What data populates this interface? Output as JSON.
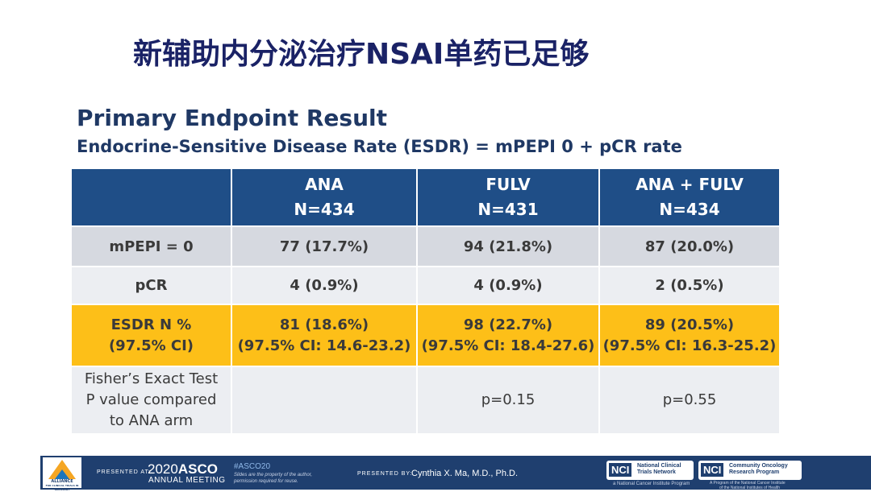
{
  "title": "新辅助内分泌治疗NSAI单药已足够",
  "section": {
    "heading": "Primary Endpoint Result",
    "subheading": "Endocrine-Sensitive Disease Rate (ESDR) = mPEPI 0 + pCR rate"
  },
  "table": {
    "columns": [
      {
        "name": "ANA",
        "n": "N=434"
      },
      {
        "name": "FULV",
        "n": "N=431"
      },
      {
        "name": "ANA + FULV",
        "n": "N=434"
      }
    ],
    "rows": [
      {
        "label": "mPEPI = 0",
        "values": [
          "77 (17.7%)",
          "94 (21.8%)",
          "87 (20.0%)"
        ]
      },
      {
        "label": "pCR",
        "values": [
          "4 (0.9%)",
          "4 (0.9%)",
          "2 (0.5%)"
        ]
      },
      {
        "label": "ESDR N %",
        "label2": "(97.5% CI)",
        "values": [
          "81 (18.6%)",
          "98 (22.7%)",
          "89 (20.5%)"
        ],
        "ci": [
          "(97.5% CI: 14.6-23.2)",
          "(97.5% CI: 18.4-27.6)",
          "(97.5% CI: 16.3-25.2)"
        ]
      },
      {
        "label_lines": [
          "Fisher’s Exact Test",
          "P value compared",
          "to ANA arm"
        ],
        "values": [
          "",
          "p=0.15",
          "p=0.55"
        ]
      }
    ]
  },
  "footer": {
    "presented_at": "PRESENTED AT:",
    "meeting_year": "2020",
    "meeting_name": "ASCO",
    "meeting_sub": "ANNUAL MEETING",
    "hashtag": "#ASCO20",
    "notice_1": "Slides are the property of the author,",
    "notice_2": "permission required for reuse.",
    "presented_by": "PRESENTED BY:",
    "presenter": "Cynthia X. Ma, M.D., Ph.D.",
    "logo_alliance": "ALLIANCE",
    "logo_alliance_sub": "FOR CLINICAL TRIALS IN ONCOLOGY",
    "nci_1_badge": "NCI",
    "nci_1_label_1": "National Clinical",
    "nci_1_label_2": "Trials Network",
    "nci_1_sub": "a National Cancer Institute Program",
    "nci_2_badge": "NCI",
    "nci_2_label_1": "Community Oncology",
    "nci_2_label_2": "Research Program",
    "nci_2_sub_1": "A Program of the National Cancer Institute",
    "nci_2_sub_2": "of the National Institutes of Health"
  },
  "colors": {
    "header_blue": "#1f4e87",
    "highlight_yellow": "#fdbf18",
    "title_navy": "#1a2266",
    "footer_navy": "#1f3f6f"
  }
}
